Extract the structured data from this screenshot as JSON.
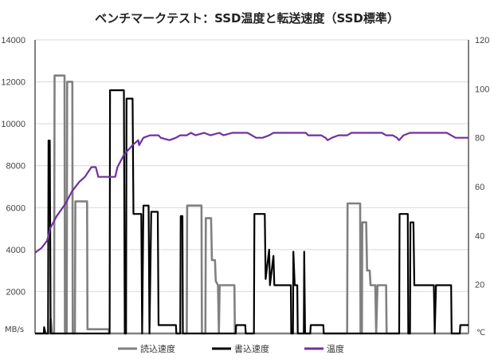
{
  "chart_data": {
    "type": "line",
    "title": "ベンチマークテスト：SSD温度と転送速度（SSD標準）",
    "y_left": {
      "unit": "MB/s",
      "ylim": [
        0,
        14000
      ],
      "ticks": [
        "0",
        "2000",
        "4000",
        "6000",
        "8000",
        "10000",
        "12000",
        "14000"
      ]
    },
    "y_right": {
      "unit": "℃",
      "ylim": [
        0,
        120
      ],
      "ticks": [
        "0",
        "20",
        "40",
        "60",
        "80",
        "100",
        "120"
      ]
    },
    "xlim": [
      0,
      100
    ],
    "grid": "horizontal",
    "legend_position": "bottom",
    "series": [
      {
        "name": "読込速度",
        "axis": "left",
        "color": "#808080",
        "points": [
          [
            0,
            0
          ],
          [
            3.5,
            0
          ],
          [
            3.6,
            700
          ],
          [
            3.9,
            0
          ],
          [
            4.4,
            0
          ],
          [
            4.5,
            12300
          ],
          [
            6.8,
            12300
          ],
          [
            6.9,
            0
          ],
          [
            7.3,
            0
          ],
          [
            7.4,
            12000
          ],
          [
            8.6,
            12000
          ],
          [
            8.7,
            0
          ],
          [
            9.2,
            0
          ],
          [
            9.3,
            6300
          ],
          [
            12,
            6300
          ],
          [
            12.1,
            200
          ],
          [
            17,
            200
          ],
          [
            17.1,
            0
          ],
          [
            35,
            0
          ],
          [
            35.1,
            6100
          ],
          [
            38.4,
            6100
          ],
          [
            38.5,
            0
          ],
          [
            39.3,
            0
          ],
          [
            39.4,
            5500
          ],
          [
            40.6,
            5500
          ],
          [
            40.8,
            3500
          ],
          [
            41.5,
            3500
          ],
          [
            41.7,
            2500
          ],
          [
            42.2,
            2300
          ],
          [
            42.4,
            0
          ],
          [
            42.6,
            2300
          ],
          [
            46,
            2300
          ],
          [
            46.1,
            0
          ],
          [
            72,
            0
          ],
          [
            72.1,
            6200
          ],
          [
            75,
            6200
          ],
          [
            75.1,
            0
          ],
          [
            75.4,
            0
          ],
          [
            75.5,
            5300
          ],
          [
            76.4,
            5300
          ],
          [
            76.6,
            3000
          ],
          [
            77.2,
            3000
          ],
          [
            77.4,
            2300
          ],
          [
            78.5,
            2300
          ],
          [
            78.7,
            0
          ],
          [
            79,
            2300
          ],
          [
            81,
            2300
          ],
          [
            81.1,
            0
          ],
          [
            100,
            0
          ]
        ]
      },
      {
        "name": "書込速度",
        "axis": "left",
        "color": "#000000",
        "points": [
          [
            0,
            0
          ],
          [
            2,
            0
          ],
          [
            2.1,
            300
          ],
          [
            2.4,
            0
          ],
          [
            3,
            0
          ],
          [
            3.1,
            9200
          ],
          [
            3.4,
            9200
          ],
          [
            3.6,
            0
          ],
          [
            17.2,
            0
          ],
          [
            17.3,
            11600
          ],
          [
            20.5,
            11600
          ],
          [
            20.7,
            0
          ],
          [
            21,
            0
          ],
          [
            21.1,
            11200
          ],
          [
            22.5,
            11200
          ],
          [
            22.7,
            5700
          ],
          [
            24.5,
            5700
          ],
          [
            24.7,
            0
          ],
          [
            25,
            6100
          ],
          [
            26.2,
            6100
          ],
          [
            26.4,
            0
          ],
          [
            26.8,
            5800
          ],
          [
            28.3,
            5800
          ],
          [
            28.5,
            400
          ],
          [
            32.5,
            400
          ],
          [
            32.6,
            0
          ],
          [
            33.5,
            0
          ],
          [
            33.6,
            5600
          ],
          [
            34,
            5600
          ],
          [
            34.1,
            0
          ],
          [
            46.3,
            0
          ],
          [
            46.4,
            400
          ],
          [
            48.5,
            400
          ],
          [
            48.6,
            0
          ],
          [
            50.5,
            0
          ],
          [
            50.6,
            5700
          ],
          [
            53,
            5700
          ],
          [
            53.2,
            2600
          ],
          [
            54,
            4000
          ],
          [
            54.2,
            2300
          ],
          [
            55,
            3700
          ],
          [
            55.2,
            2300
          ],
          [
            59,
            2300
          ],
          [
            59.1,
            0
          ],
          [
            59.5,
            0
          ],
          [
            59.6,
            3900
          ],
          [
            59.9,
            2300
          ],
          [
            60.5,
            2300
          ],
          [
            60.6,
            0
          ],
          [
            62,
            0
          ],
          [
            62.1,
            3900
          ],
          [
            62.3,
            0
          ],
          [
            63.5,
            0
          ],
          [
            63.6,
            400
          ],
          [
            66.5,
            400
          ],
          [
            66.6,
            0
          ],
          [
            84,
            0
          ],
          [
            84.1,
            5700
          ],
          [
            86,
            5700
          ],
          [
            86.1,
            0
          ],
          [
            86.5,
            0
          ],
          [
            86.6,
            5300
          ],
          [
            87.3,
            5300
          ],
          [
            87.5,
            2300
          ],
          [
            92,
            2300
          ],
          [
            92.2,
            0
          ],
          [
            92.5,
            2300
          ],
          [
            96,
            2300
          ],
          [
            96.1,
            0
          ],
          [
            98,
            0
          ],
          [
            98.1,
            400
          ],
          [
            100,
            400
          ]
        ]
      },
      {
        "name": "温度",
        "axis": "right",
        "color": "#7030A0",
        "points": [
          [
            0,
            33
          ],
          [
            1.5,
            35
          ],
          [
            2.8,
            38
          ],
          [
            3.5,
            43
          ],
          [
            5,
            48
          ],
          [
            7,
            53
          ],
          [
            8.5,
            58
          ],
          [
            10.2,
            62
          ],
          [
            11.5,
            64
          ],
          [
            13,
            68
          ],
          [
            14,
            68
          ],
          [
            14.6,
            64
          ],
          [
            18.5,
            64
          ],
          [
            19,
            68
          ],
          [
            20.5,
            73
          ],
          [
            22.5,
            77
          ],
          [
            23.8,
            79
          ],
          [
            24,
            77
          ],
          [
            25,
            80
          ],
          [
            26.5,
            81
          ],
          [
            28.5,
            81
          ],
          [
            29,
            80
          ],
          [
            31,
            79
          ],
          [
            32.5,
            80
          ],
          [
            33.5,
            81
          ],
          [
            35,
            81
          ],
          [
            36,
            82
          ],
          [
            37,
            81
          ],
          [
            39,
            82
          ],
          [
            40.5,
            81
          ],
          [
            42.5,
            82
          ],
          [
            43.5,
            81
          ],
          [
            45.5,
            82
          ],
          [
            47.5,
            82
          ],
          [
            49,
            82
          ],
          [
            50,
            81
          ],
          [
            51,
            80
          ],
          [
            52.5,
            80
          ],
          [
            54,
            81
          ],
          [
            55,
            82
          ],
          [
            56.5,
            82
          ],
          [
            58,
            82
          ],
          [
            62.5,
            82
          ],
          [
            63,
            81
          ],
          [
            64.5,
            81
          ],
          [
            66,
            81
          ],
          [
            67,
            80
          ],
          [
            67.5,
            79
          ],
          [
            68.5,
            80
          ],
          [
            70,
            81
          ],
          [
            72,
            81
          ],
          [
            73,
            82
          ],
          [
            75,
            82
          ],
          [
            77,
            82
          ],
          [
            79,
            82
          ],
          [
            80,
            82
          ],
          [
            81,
            81
          ],
          [
            82.5,
            81
          ],
          [
            83.5,
            80
          ],
          [
            84,
            79
          ],
          [
            85,
            81
          ],
          [
            86.5,
            82
          ],
          [
            88,
            82
          ],
          [
            93,
            82
          ],
          [
            95,
            82
          ],
          [
            96,
            81
          ],
          [
            97,
            80
          ],
          [
            98,
            80
          ],
          [
            100,
            80
          ]
        ]
      }
    ]
  }
}
